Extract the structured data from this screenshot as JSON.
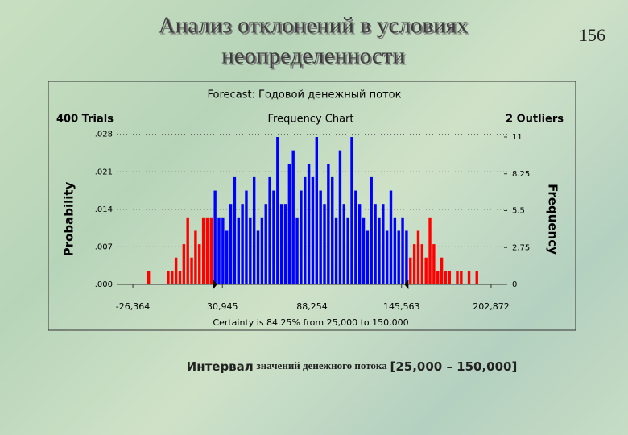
{
  "slide": {
    "title_line1": "Анализ отклонений в условиях",
    "title_line2": "неопределенности",
    "page_number": "156",
    "caption": {
      "part1": "Интервал",
      "part2": "значений денежного потока",
      "part3": "[25,000 – 150,000]"
    }
  },
  "chart_data": {
    "type": "histogram",
    "title": "Forecast: Годовой денежный поток",
    "subtitle": "Frequency Chart",
    "trials": "400 Trials",
    "outliers": "2 Outliers",
    "ylabel": "Probability",
    "y2label": "Frequency",
    "certainty": {
      "label": "Certainty is 84.25% from 25,000 to 150,000",
      "from": 25000,
      "to": 150000
    },
    "inside_color": "#0000ff",
    "outside_color": "#ff0000",
    "marker_color": "#000000",
    "xlim": [
      -36690,
      213200
    ],
    "xticks": [
      {
        "value": -26364,
        "label": "-26,364"
      },
      {
        "value": 30945,
        "label": "30,945"
      },
      {
        "value": 88254,
        "label": "88,254"
      },
      {
        "value": 145563,
        "label": "145,563"
      },
      {
        "value": 202872,
        "label": "202,872"
      }
    ],
    "ylim": [
      0,
      0.0275
    ],
    "yticks": [
      {
        "value": 0,
        "label": ".000"
      },
      {
        "value": 0.007,
        "label": ".007"
      },
      {
        "value": 0.014,
        "label": ".014"
      },
      {
        "value": 0.021,
        "label": ".021"
      },
      {
        "value": 0.028,
        "label": ".028"
      }
    ],
    "y2lim": [
      0,
      11
    ],
    "y2ticks": [
      0,
      2.75,
      5.5,
      8.25,
      11
    ],
    "grid": true,
    "bins": [
      -20000,
      -17500,
      -15000,
      -12500,
      -10000,
      -7500,
      -5000,
      -2500,
      0,
      2500,
      5000,
      7500,
      10000,
      12500,
      15000,
      17500,
      20000,
      22500,
      25000,
      27500,
      30000,
      32500,
      35000,
      37500,
      40000,
      42500,
      45000,
      47500,
      50000,
      52500,
      55000,
      57500,
      60000,
      62500,
      65000,
      67500,
      70000,
      72500,
      75000,
      77500,
      80000,
      82500,
      85000,
      87500,
      90000,
      92500,
      95000,
      97500,
      100000,
      102500,
      105000,
      107500,
      110000,
      112500,
      115000,
      117500,
      120000,
      122500,
      125000,
      127500,
      130000,
      132500,
      135000,
      137500,
      140000,
      142500,
      145000,
      147500,
      150000,
      152500,
      155000,
      157500,
      160000,
      162500,
      165000,
      167500,
      170000,
      172500,
      175000,
      177500,
      180000,
      182500,
      185000,
      187500,
      190000,
      192500,
      195000
    ],
    "series": [
      {
        "name": "Frequency",
        "axis": "y2",
        "values": [
          0,
          1,
          0,
          0,
          0,
          0,
          1,
          1,
          2,
          1,
          3,
          5,
          2,
          4,
          3,
          5,
          5,
          5,
          7,
          5,
          5,
          4,
          6,
          8,
          5,
          6,
          7,
          5,
          8,
          4,
          5,
          6,
          8,
          7,
          11,
          6,
          6,
          9,
          10,
          5,
          7,
          8,
          9,
          8,
          11,
          7,
          6,
          9,
          8,
          5,
          10,
          6,
          5,
          11,
          7,
          6,
          5,
          4,
          8,
          6,
          5,
          6,
          4,
          7,
          5,
          4,
          5,
          4,
          2,
          3,
          4,
          3,
          2,
          5,
          3,
          1,
          2,
          1,
          1,
          0,
          1,
          1,
          0,
          1,
          0,
          1
        ]
      }
    ]
  }
}
